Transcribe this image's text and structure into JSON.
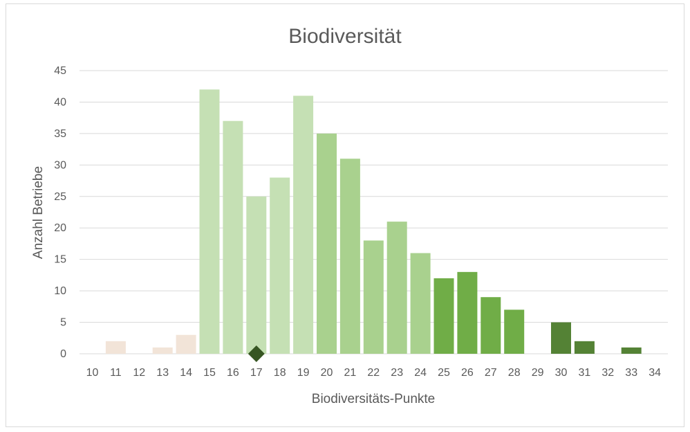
{
  "chart_data": {
    "type": "bar",
    "title": "Biodiversität",
    "xlabel": "Biodiversitäts-Punkte",
    "ylabel": "Anzahl Betriebe",
    "ylim": [
      0,
      45
    ],
    "yticks": [
      0,
      5,
      10,
      15,
      20,
      25,
      30,
      35,
      40,
      45
    ],
    "grid": true,
    "categories": [
      "10",
      "11",
      "12",
      "13",
      "14",
      "15",
      "16",
      "17",
      "18",
      "19",
      "20",
      "21",
      "22",
      "23",
      "24",
      "25",
      "26",
      "27",
      "28",
      "29",
      "30",
      "31",
      "32",
      "33",
      "34"
    ],
    "values": [
      0,
      2,
      0,
      1,
      3,
      42,
      37,
      25,
      28,
      41,
      35,
      31,
      18,
      21,
      16,
      12,
      13,
      9,
      7,
      0,
      5,
      2,
      0,
      1,
      0
    ],
    "bar_colors": [
      "#f2e4d8",
      "#f2e4d8",
      "#f2e4d8",
      "#f2e4d8",
      "#f2e4d8",
      "#c5e0b4",
      "#c5e0b4",
      "#c5e0b4",
      "#c5e0b4",
      "#c5e0b4",
      "#a9d18e",
      "#a9d18e",
      "#a9d18e",
      "#a9d18e",
      "#a9d18e",
      "#70ad47",
      "#70ad47",
      "#70ad47",
      "#70ad47",
      "#70ad47",
      "#548235",
      "#548235",
      "#548235",
      "#548235",
      "#548235"
    ],
    "marker": {
      "category": "17",
      "value": 0,
      "shape": "diamond",
      "color": "#375623"
    }
  }
}
